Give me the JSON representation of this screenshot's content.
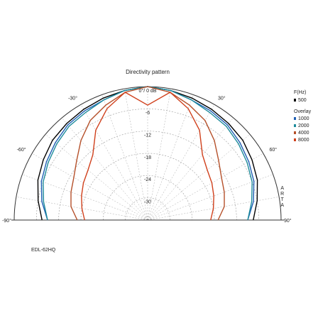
{
  "chart_data": {
    "type": "polar",
    "title": "Directivity pattern",
    "theta": [
      -90,
      -80,
      -70,
      -60,
      -50,
      -40,
      -30,
      -20,
      -10,
      0,
      10,
      20,
      30,
      40,
      50,
      60,
      70,
      80,
      90
    ],
    "rlim": [
      -36,
      0
    ],
    "rticks": [
      {
        "value": 0,
        "label": "0°/ 0 dB"
      },
      -6,
      -12,
      -18,
      -24,
      -30
    ],
    "thetaticks": [
      {
        "value": -90,
        "label": "-90°"
      },
      {
        "value": -60,
        "label": "-60°"
      },
      {
        "value": -30,
        "label": "-30°"
      },
      {
        "value": 30,
        "label": "30°"
      },
      {
        "value": 60,
        "label": "60°"
      },
      {
        "value": 90,
        "label": "90°"
      }
    ],
    "legend_title": "F(Hz)",
    "legend_subtitle": "Overlay",
    "series": [
      {
        "name": "500",
        "color": "#000000",
        "values": [
          -7.5,
          -6,
          -4.5,
          -3.5,
          -2.5,
          -2,
          -1.5,
          -1,
          -0.5,
          0,
          -0.5,
          -1,
          -1.5,
          -2,
          -2.5,
          -3.5,
          -4.5,
          -6,
          -7.5
        ]
      },
      {
        "name": "1000",
        "color": "#1f5fb4",
        "values": [
          -9,
          -7,
          -5.5,
          -4.5,
          -3.5,
          -2.5,
          -2,
          -1.5,
          -0.5,
          0,
          -0.5,
          -1.5,
          -2,
          -2.5,
          -3.5,
          -4.5,
          -5.5,
          -7,
          -9
        ]
      },
      {
        "name": "2000",
        "color": "#1e8c9c",
        "values": [
          -9,
          -7.5,
          -6,
          -5,
          -4,
          -3,
          -2.5,
          -1.5,
          -0.5,
          0,
          -0.5,
          -1.5,
          -2.5,
          -3,
          -4,
          -5,
          -6,
          -7.5,
          -9
        ]
      },
      {
        "name": "4000",
        "color": "#b5502a",
        "values": [
          -17,
          -15,
          -14,
          -13,
          -11,
          -8,
          -5,
          -3,
          -1,
          0,
          -1,
          -3,
          -5,
          -8,
          -11,
          -13,
          -14,
          -15,
          -17
        ]
      },
      {
        "name": "8000",
        "color": "#d0401c",
        "values": [
          -19,
          -18,
          -17,
          -16,
          -15,
          -13,
          -8,
          -4,
          -1,
          -5,
          -1,
          -4,
          -8,
          -13,
          -15,
          -16,
          -17,
          -18,
          -19
        ]
      }
    ],
    "annotations": [
      "EDL-62HQ",
      "ARTA"
    ]
  }
}
